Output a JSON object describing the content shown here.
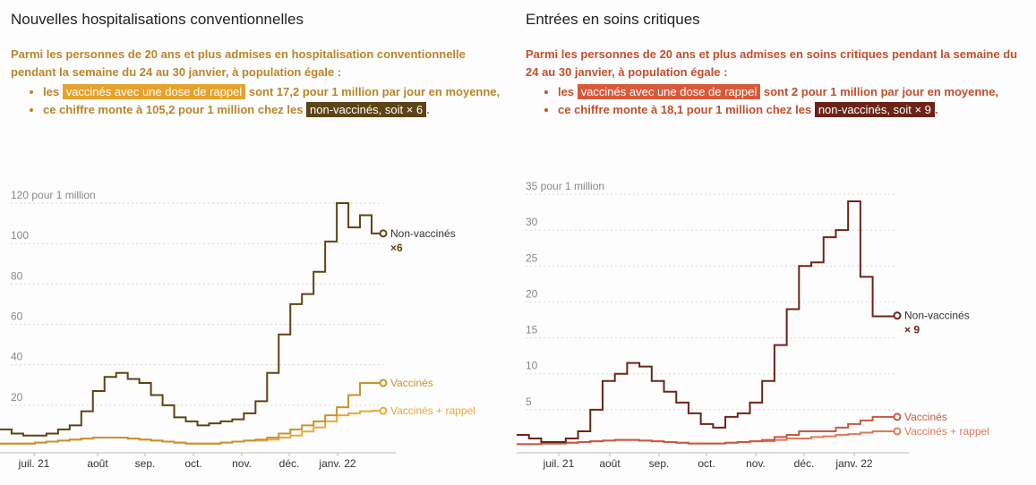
{
  "left": {
    "title": "Nouvelles hospitalisations conventionnelles",
    "intro": "Parmi les personnes de 20 ans et plus admises en hospitalisation conventionnelle pendant la semaine du 24 au 30 janvier, à population égale :",
    "b1_pre": "les ",
    "b1_tag": "vaccinés avec une dose de rappel",
    "b1_post": " sont 17,2 pour 1 million par jour en moyenne,",
    "b2_pre": "ce chiffre monte à 105,2 pour 1 million chez les ",
    "b2_tag": "non-vaccinés, soit × 6",
    "b2_post": ".",
    "colors": {
      "nonvac": "#5c4414",
      "vac": "#c9922e",
      "boost": "#e8a838"
    }
  },
  "right": {
    "title": "Entrées en soins critiques",
    "intro": "Parmi les personnes de 20 ans et plus admises en soins critiques pendant la semaine du 24 au 30 janvier, à population égale :",
    "b1_pre": "les ",
    "b1_tag": "vaccinés avec une dose de rappel",
    "b1_post": " sont 2 pour 1 million par jour en moyenne,",
    "b2_pre": "ce chiffre monte à 18,1 pour 1 million chez les ",
    "b2_tag": "non-vaccinés, soit × 9",
    "b2_post": ".",
    "colors": {
      "nonvac": "#6b2418",
      "vac": "#c65a42",
      "boost": "#e07a5a"
    }
  },
  "chart_data": [
    {
      "type": "line",
      "title": "Nouvelles hospitalisations conventionnelles",
      "ylabel": "pour 1 million",
      "ylim": [
        0,
        120
      ],
      "yticks": [
        20,
        40,
        60,
        80,
        100,
        120
      ],
      "ytick_labels": [
        "20",
        "40",
        "60",
        "80",
        "100",
        "120 pour 1 million"
      ],
      "xticks": [
        "juil. 21",
        "août",
        "sep.",
        "oct.",
        "nov.",
        "déc.",
        "janv. 22"
      ],
      "series": [
        {
          "name": "Non-vaccinés",
          "annotation": "×6",
          "values": [
            8,
            6,
            5,
            5,
            6,
            8,
            10,
            17,
            27,
            34,
            36,
            33,
            31,
            25,
            20,
            14,
            12,
            10,
            11,
            12,
            13,
            16,
            22,
            36,
            55,
            70,
            75,
            86,
            101,
            120,
            108,
            114,
            105,
            105
          ]
        },
        {
          "name": "Vaccinés",
          "values": [
            1,
            1,
            1,
            1.5,
            2,
            2.5,
            3,
            3.5,
            4,
            4,
            4,
            3.5,
            3,
            2.5,
            2,
            1.5,
            1,
            1,
            1,
            1.5,
            2,
            2.5,
            3,
            4,
            6,
            8,
            10,
            12,
            15,
            19,
            25,
            31,
            31,
            31
          ]
        },
        {
          "name": "Vaccinés + rappel",
          "values": [
            1,
            1,
            1,
            1.5,
            2,
            2.5,
            3,
            3.5,
            4,
            4,
            4,
            3.5,
            3,
            2.5,
            2,
            1.5,
            1,
            1,
            1,
            1.5,
            2,
            2.5,
            2.5,
            3,
            4,
            5,
            7,
            9,
            12,
            15,
            16,
            17,
            17.2,
            17.2
          ]
        }
      ]
    },
    {
      "type": "line",
      "title": "Entrées en soins critiques",
      "ylabel": "pour 1 million",
      "ylim": [
        0,
        35
      ],
      "yticks": [
        5,
        10,
        15,
        20,
        25,
        30,
        35
      ],
      "ytick_labels": [
        "5",
        "10",
        "15",
        "20",
        "25",
        "30",
        "35 pour 1 million"
      ],
      "xticks": [
        "juil. 21",
        "août",
        "sep.",
        "oct.",
        "nov.",
        "déc.",
        "janv. 22"
      ],
      "series": [
        {
          "name": "Non-vaccinés",
          "annotation": "× 9",
          "values": [
            1.5,
            1,
            0.5,
            0.5,
            1,
            2,
            5,
            9,
            10,
            11.5,
            11,
            9,
            7.5,
            6,
            4.5,
            3,
            2.5,
            4,
            4.5,
            6,
            9,
            14,
            19,
            25,
            25.5,
            29,
            30,
            34,
            23.5,
            18,
            18,
            18.1
          ]
        },
        {
          "name": "Vaccinés",
          "values": [
            0.2,
            0.2,
            0.3,
            0.3,
            0.4,
            0.5,
            0.6,
            0.7,
            0.8,
            0.8,
            0.7,
            0.6,
            0.5,
            0.4,
            0.3,
            0.3,
            0.3,
            0.4,
            0.5,
            0.6,
            0.8,
            1.2,
            1.5,
            2,
            2,
            2,
            2.5,
            3,
            3.5,
            4,
            4,
            4
          ]
        },
        {
          "name": "Vaccinés + rappel",
          "values": [
            0.2,
            0.2,
            0.3,
            0.3,
            0.4,
            0.5,
            0.6,
            0.7,
            0.8,
            0.8,
            0.7,
            0.6,
            0.5,
            0.4,
            0.3,
            0.3,
            0.3,
            0.4,
            0.5,
            0.6,
            0.6,
            0.8,
            1,
            1,
            1.2,
            1.3,
            1.5,
            1.6,
            1.8,
            2,
            2,
            2
          ]
        }
      ]
    }
  ]
}
